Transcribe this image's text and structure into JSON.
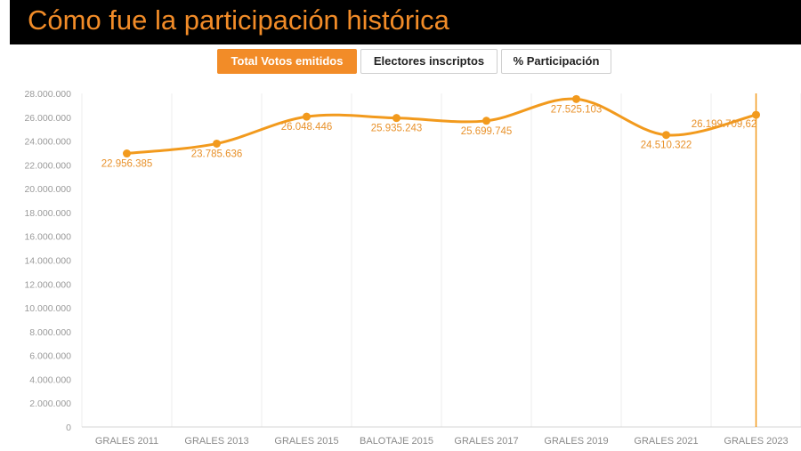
{
  "header": {
    "title": "Cómo fue la participación histórica"
  },
  "tabs": [
    {
      "label": "Total Votos emitidos",
      "active": true
    },
    {
      "label": "Electores inscriptos",
      "active": false
    },
    {
      "label": "% Participación",
      "active": false
    }
  ],
  "colors": {
    "accent": "#f28c28",
    "line": "#f29a1d",
    "header_bg": "#000000"
  },
  "chart_data": {
    "type": "line",
    "categories": [
      "GRALES 2011",
      "GRALES 2013",
      "GRALES 2015",
      "BALOTAJE 2015",
      "GRALES 2017",
      "GRALES 2019",
      "GRALES 2021",
      "GRALES 2023"
    ],
    "series": [
      {
        "values": [
          22956385,
          23785636,
          26048446,
          25935243,
          25699745,
          27525103,
          24510322,
          26199709.62
        ]
      }
    ],
    "data_labels": [
      "22.956.385",
      "23.785.636",
      "26.048.446",
      "25.935.243",
      "25.699.745",
      "27.525.103",
      "24.510.322",
      "26.199.709,62"
    ],
    "y_tick_labels": [
      "0",
      "2.000.000",
      "4.000.000",
      "6.000.000",
      "8.000.000",
      "10.000.000",
      "12.000.000",
      "14.000.000",
      "16.000.000",
      "18.000.000",
      "20.000.000",
      "22.000.000",
      "24.000.000",
      "26.000.000",
      "28.000.000"
    ],
    "ylim": [
      0,
      28000000
    ],
    "y_step": 2000000,
    "grid": "vertical",
    "highlighted_category": "GRALES 2023",
    "legend": "none"
  }
}
